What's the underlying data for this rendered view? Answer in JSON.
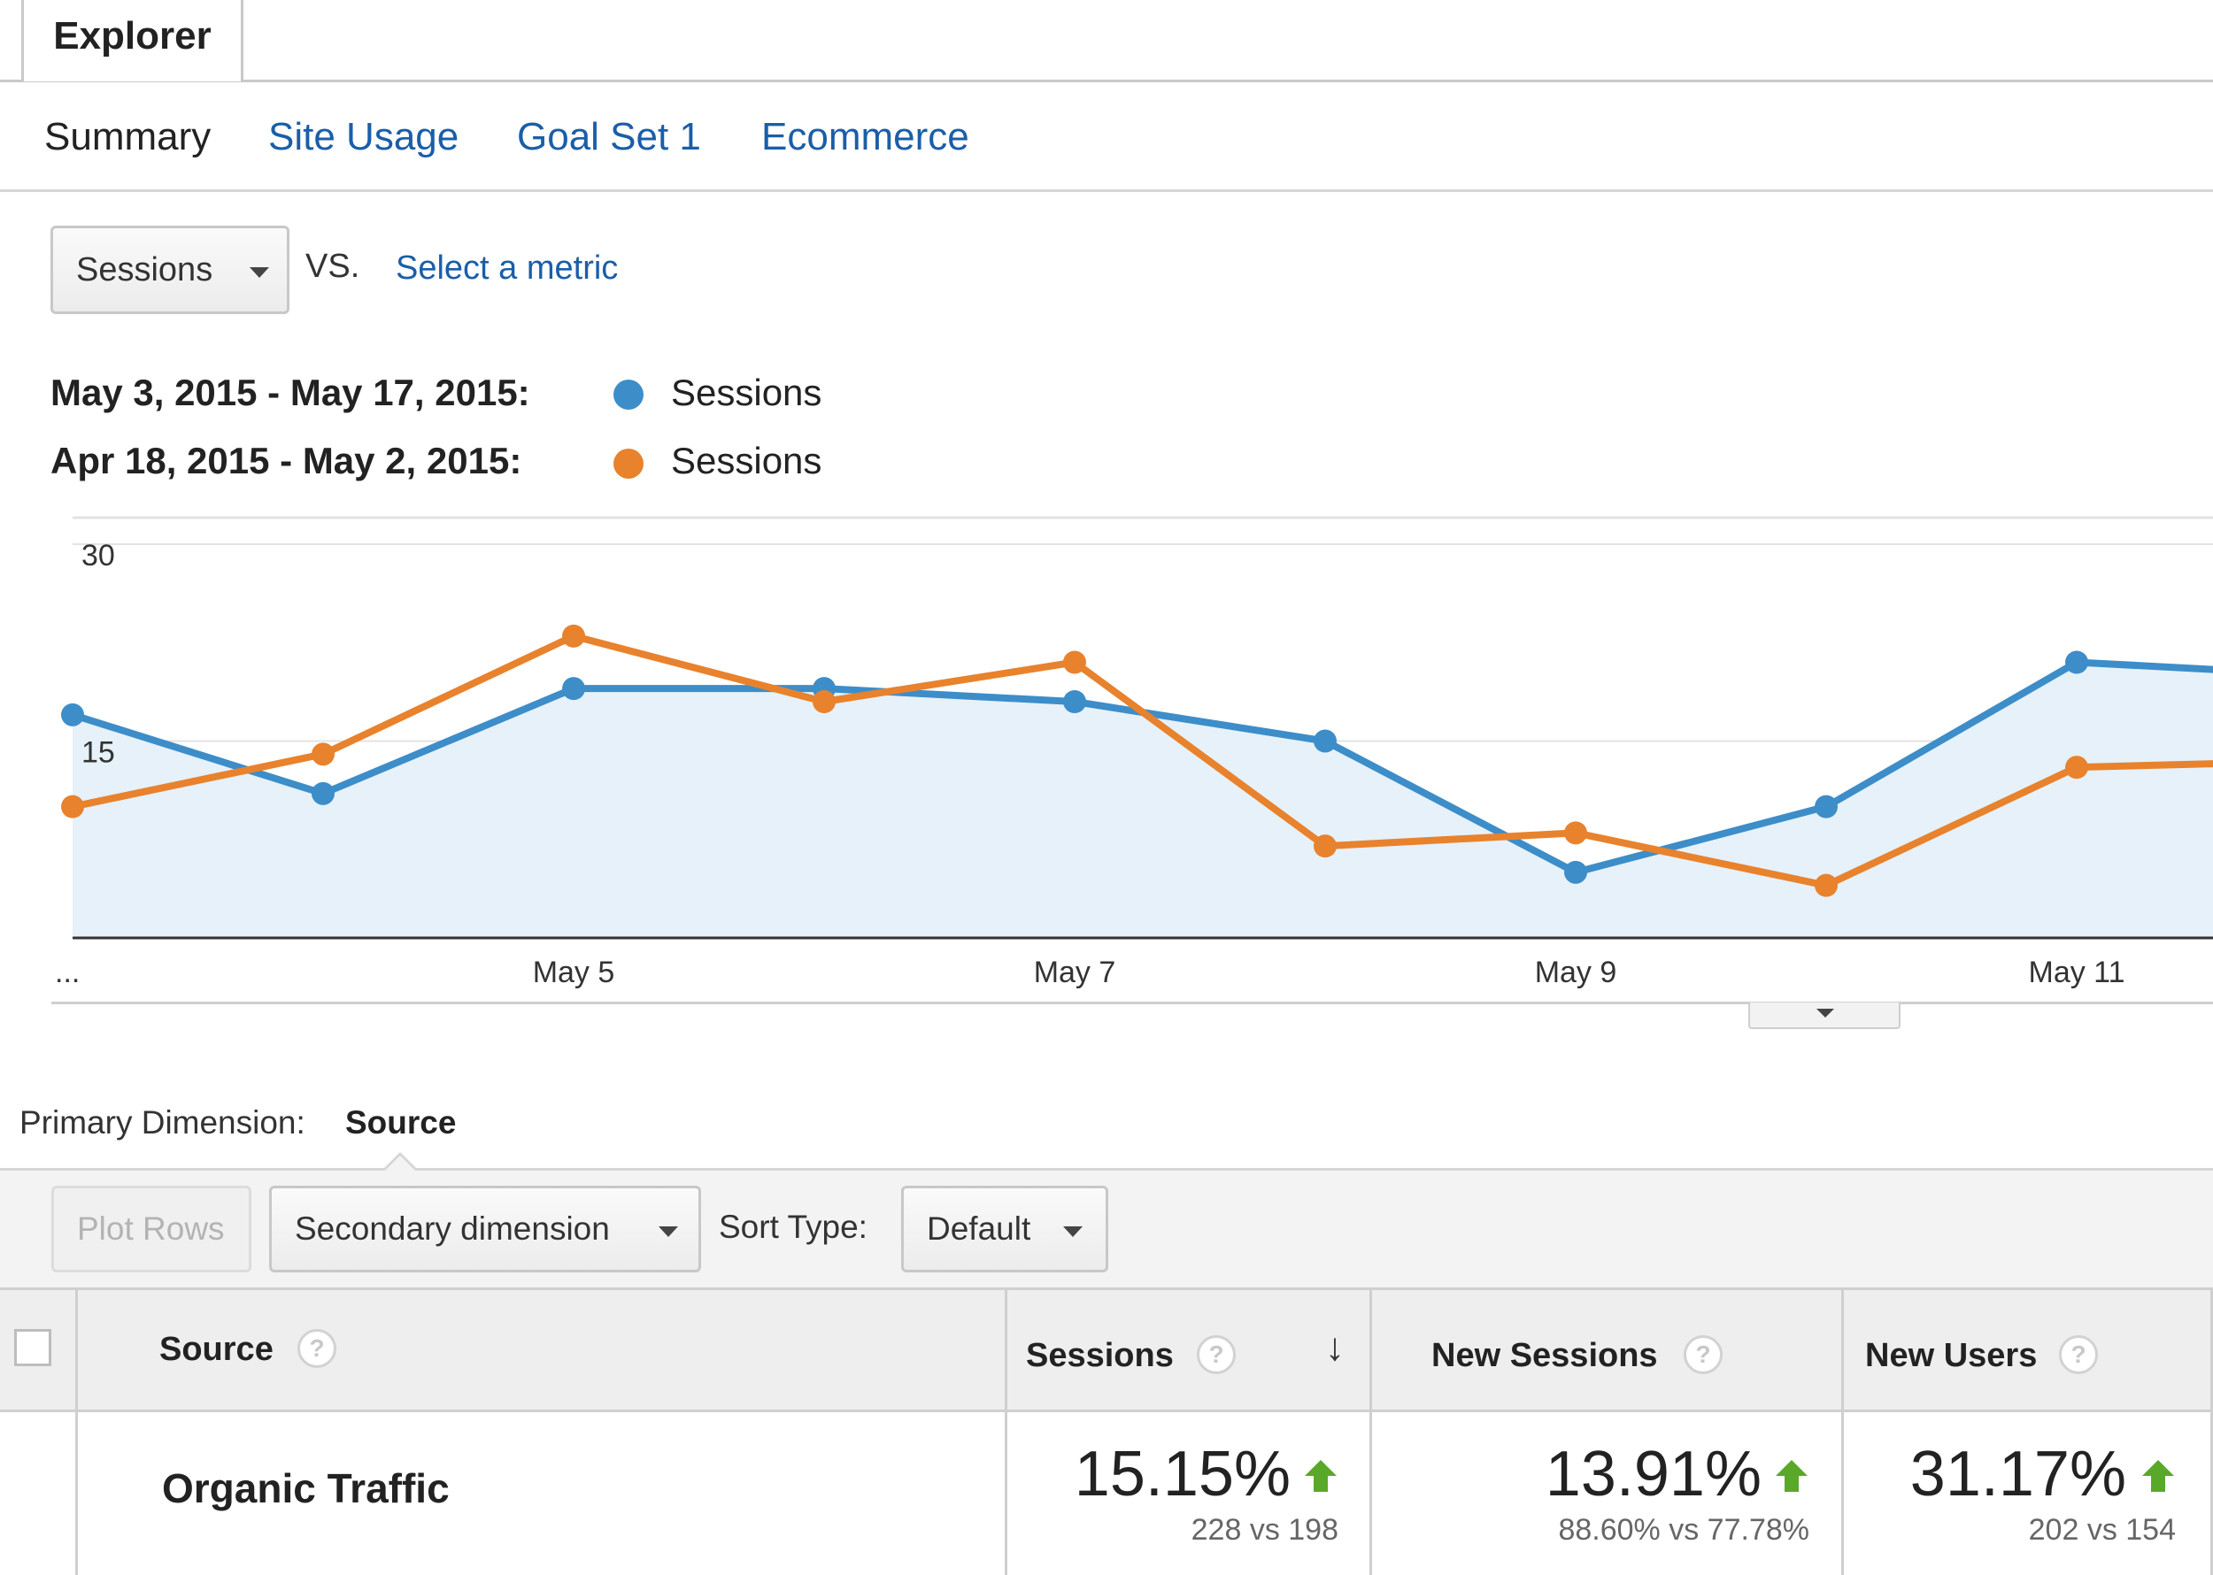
{
  "tabs": {
    "explorer": "Explorer"
  },
  "subtabs": [
    {
      "label": "Summary",
      "active": true
    },
    {
      "label": "Site Usage",
      "active": false
    },
    {
      "label": "Goal Set 1",
      "active": false
    },
    {
      "label": "Ecommerce",
      "active": false
    }
  ],
  "metric_selector": {
    "value": "Sessions",
    "vs": "VS.",
    "select_metric": "Select a metric"
  },
  "legend": [
    {
      "range": "May 3, 2015 - May 17, 2015:",
      "label": "Sessions",
      "color": "#3d8dc9"
    },
    {
      "range": "Apr 18, 2015 - May 2, 2015:",
      "label": "Sessions",
      "color": "#e8822d"
    }
  ],
  "chart_data": {
    "type": "line",
    "x": [
      "May 3",
      "May 4",
      "May 5",
      "May 6",
      "May 7",
      "May 8",
      "May 9",
      "May 10",
      "May 11",
      "May 12"
    ],
    "x_tick_labels": [
      "...",
      "May 5",
      "May 7",
      "May 9",
      "May 11"
    ],
    "y_ticks": [
      15,
      30
    ],
    "ylim": [
      0,
      30
    ],
    "grid": true,
    "series": [
      {
        "name": "Sessions",
        "color": "#3d8dc9",
        "area_fill": "#e6f1f9",
        "values": [
          17,
          11,
          19,
          19,
          18,
          15,
          5,
          10,
          21,
          20
        ]
      },
      {
        "name": "Sessions",
        "color": "#e8822d",
        "values": [
          10,
          14,
          23,
          18,
          21,
          7,
          8,
          4,
          13,
          13.5
        ]
      }
    ]
  },
  "primary_dimension": {
    "label": "Primary Dimension:",
    "value": "Source"
  },
  "toolbar": {
    "plot_rows": "Plot Rows",
    "secondary_dimension": "Secondary dimension",
    "sort_type_label": "Sort Type:",
    "sort_type_value": "Default"
  },
  "table": {
    "columns": [
      "Source",
      "Sessions",
      "New Sessions",
      "New Users"
    ],
    "help_glyph": "?",
    "sort_glyph": "↓",
    "rows": [
      {
        "source": "Organic Traffic",
        "sessions": {
          "pct": "15.15%",
          "compare": "228 vs 198"
        },
        "new_sessions": {
          "pct": "13.91%",
          "compare": "88.60% vs 77.78%"
        },
        "new_users": {
          "pct": "31.17%",
          "compare": "202 vs 154"
        }
      }
    ]
  },
  "colors": {
    "link": "#1a5ea8",
    "up_arrow": "#5aa829"
  }
}
